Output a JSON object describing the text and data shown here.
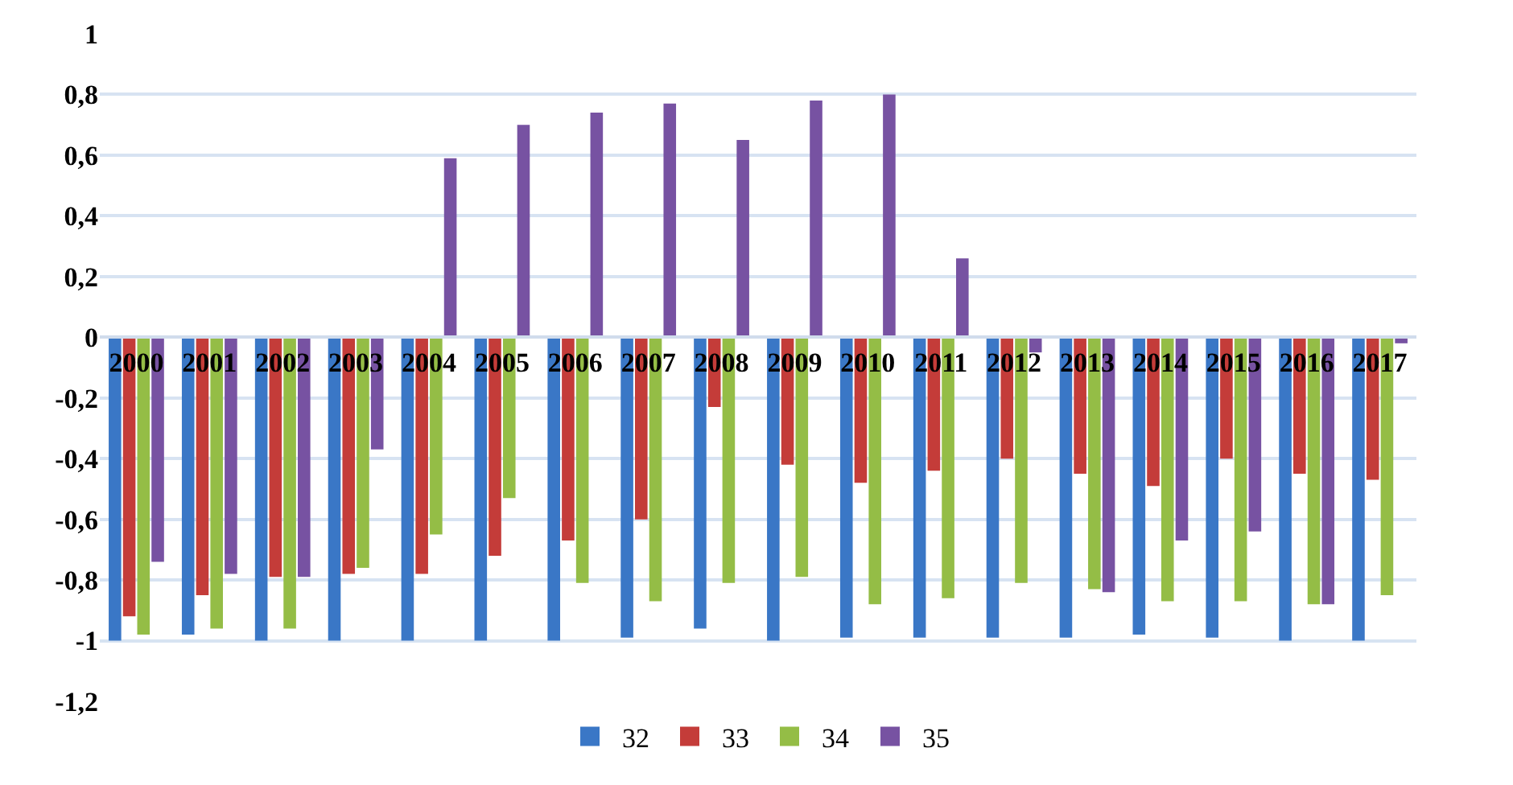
{
  "chart_data": {
    "type": "bar",
    "categories": [
      "2000",
      "2001",
      "2002",
      "2003",
      "2004",
      "2005",
      "2006",
      "2007",
      "2008",
      "2009",
      "2010",
      "2011",
      "2012",
      "2013",
      "2014",
      "2015",
      "2016",
      "2017"
    ],
    "series": [
      {
        "name": "32",
        "color": "#3a77c6",
        "values": [
          -1.0,
          -0.98,
          -1.0,
          -1.0,
          -1.0,
          -1.0,
          -1.0,
          -0.99,
          -0.96,
          -1.0,
          -0.99,
          -0.99,
          -0.99,
          -0.99,
          -0.98,
          -0.99,
          -1.0,
          -1.0
        ]
      },
      {
        "name": "33",
        "color": "#c43c39",
        "values": [
          -0.92,
          -0.85,
          -0.79,
          -0.78,
          -0.78,
          -0.72,
          -0.67,
          -0.6,
          -0.23,
          -0.42,
          -0.48,
          -0.44,
          -0.4,
          -0.45,
          -0.49,
          -0.4,
          -0.45,
          -0.47
        ]
      },
      {
        "name": "34",
        "color": "#94bd46",
        "values": [
          -0.98,
          -0.96,
          -0.96,
          -0.76,
          -0.65,
          -0.53,
          -0.81,
          -0.87,
          -0.81,
          -0.79,
          -0.88,
          -0.86,
          -0.81,
          -0.83,
          -0.87,
          -0.87,
          -0.88,
          -0.85
        ]
      },
      {
        "name": "35",
        "color": "#7752a2",
        "values": [
          -0.74,
          -0.78,
          -0.79,
          -0.37,
          0.59,
          0.7,
          0.74,
          0.77,
          0.65,
          0.78,
          0.8,
          0.26,
          -0.05,
          -0.84,
          -0.67,
          -0.64,
          -0.88,
          -0.02
        ]
      }
    ],
    "ylim": [
      -1.2,
      1
    ],
    "yticks": [
      {
        "value": -1.2,
        "label": "-1,2"
      },
      -1,
      {
        "value": -0.8,
        "label": "-0,8"
      },
      {
        "value": -0.6,
        "label": "-0,6"
      },
      {
        "value": -0.4,
        "label": "-0,4"
      },
      {
        "value": -0.2,
        "label": "-0,2"
      },
      0,
      {
        "value": 0.2,
        "label": "0,2"
      },
      {
        "value": 0.4,
        "label": "0,4"
      },
      {
        "value": 0.6,
        "label": "0,6"
      },
      {
        "value": 0.8,
        "label": "0,8"
      },
      1
    ],
    "grid": "y",
    "legend": "bottom"
  }
}
